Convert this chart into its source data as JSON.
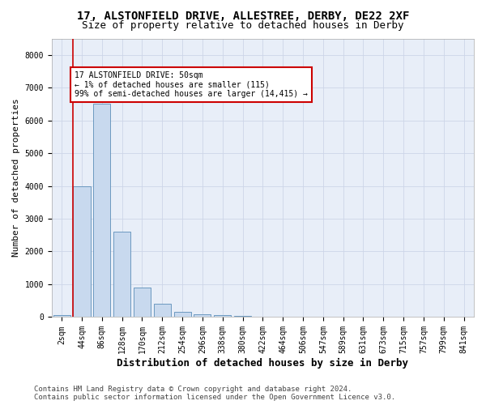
{
  "title": "17, ALSTONFIELD DRIVE, ALLESTREE, DERBY, DE22 2XF",
  "subtitle": "Size of property relative to detached houses in Derby",
  "xlabel": "Distribution of detached houses by size in Derby",
  "ylabel": "Number of detached properties",
  "footer_line1": "Contains HM Land Registry data © Crown copyright and database right 2024.",
  "footer_line2": "Contains public sector information licensed under the Open Government Licence v3.0.",
  "bar_labels": [
    "2sqm",
    "44sqm",
    "86sqm",
    "128sqm",
    "170sqm",
    "212sqm",
    "254sqm",
    "296sqm",
    "338sqm",
    "380sqm",
    "422sqm",
    "464sqm",
    "506sqm",
    "547sqm",
    "589sqm",
    "631sqm",
    "673sqm",
    "715sqm",
    "757sqm",
    "799sqm",
    "841sqm"
  ],
  "bar_values": [
    50,
    4000,
    6500,
    2600,
    900,
    400,
    150,
    75,
    50,
    30,
    10,
    5,
    2,
    1,
    0,
    0,
    0,
    0,
    0,
    0,
    0
  ],
  "bar_color": "#c8d9ee",
  "bar_edge_color": "#5b8db8",
  "grid_color": "#cdd5e8",
  "background_color": "#e8eef8",
  "ylim": [
    0,
    8500
  ],
  "yticks": [
    0,
    1000,
    2000,
    3000,
    4000,
    5000,
    6000,
    7000,
    8000
  ],
  "property_line_color": "#cc0000",
  "annotation_text": "17 ALSTONFIELD DRIVE: 50sqm\n← 1% of detached houses are smaller (115)\n99% of semi-detached houses are larger (14,415) →",
  "annotation_box_color": "#cc0000",
  "title_fontsize": 10,
  "subtitle_fontsize": 9,
  "tick_fontsize": 7,
  "ylabel_fontsize": 8,
  "xlabel_fontsize": 9,
  "footer_fontsize": 6.5
}
